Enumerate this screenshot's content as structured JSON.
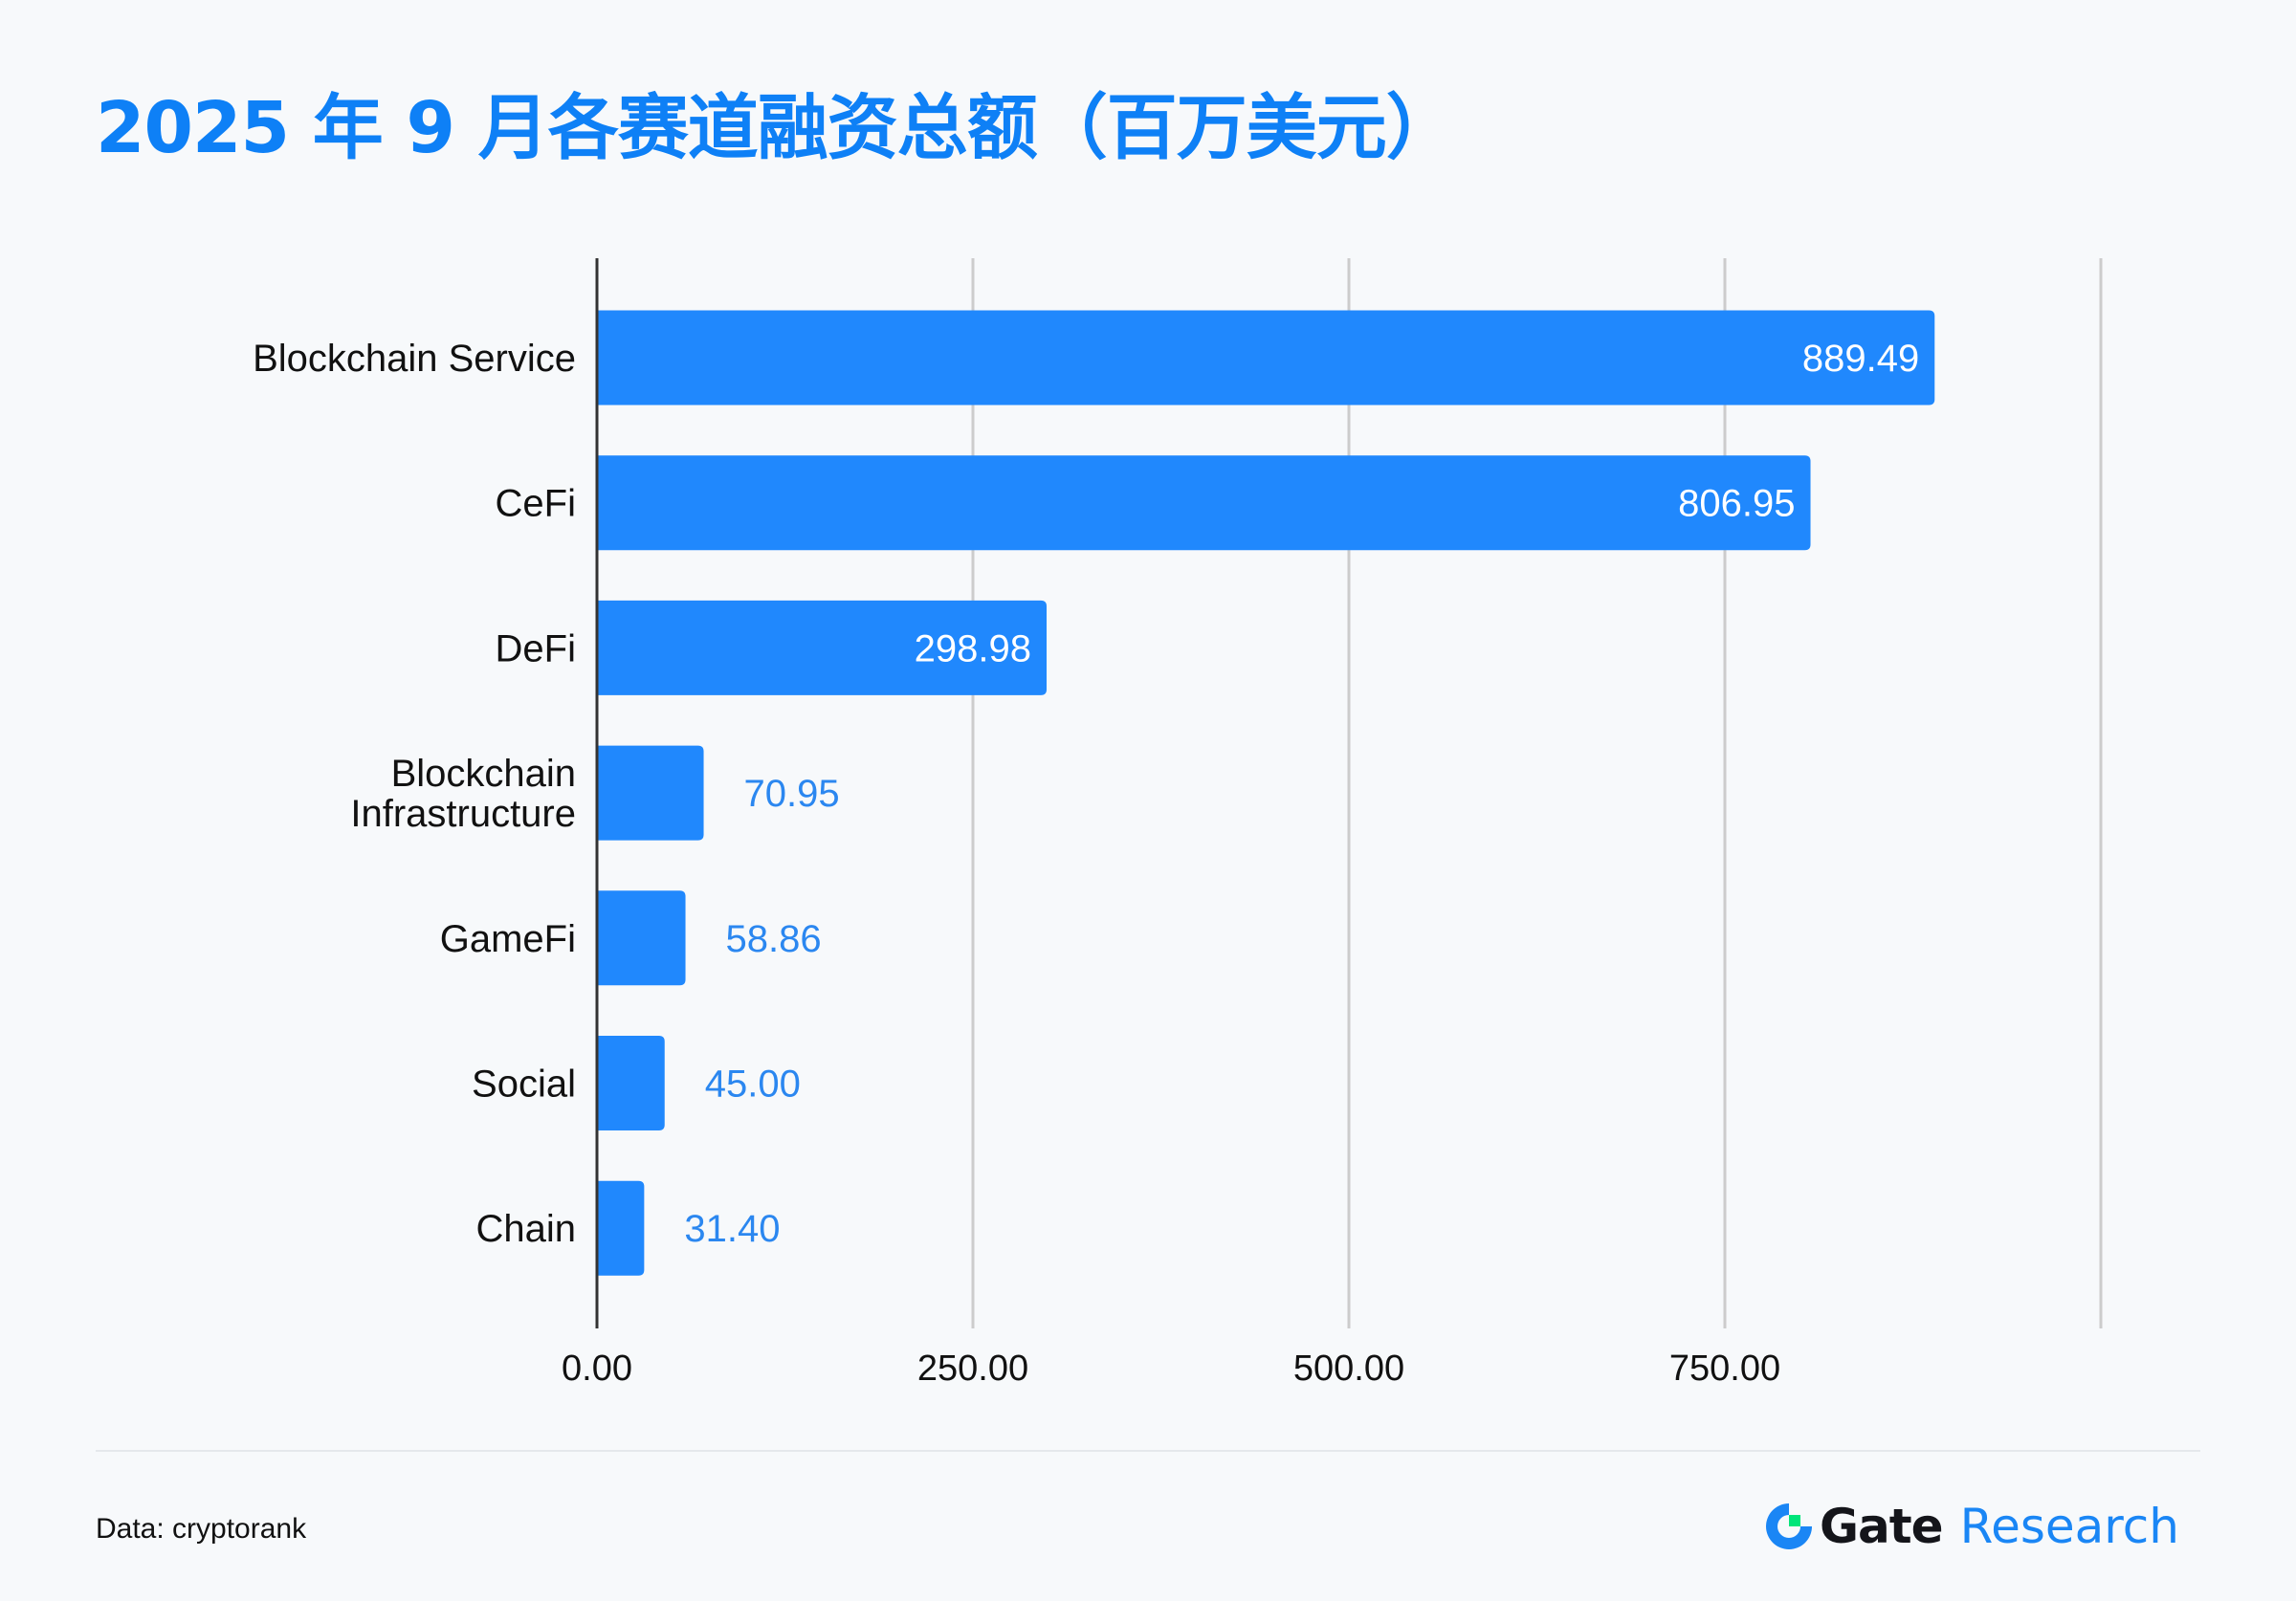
{
  "title": "2025 年 9 月各赛道融资总额（百万美元）",
  "footer": {
    "source": "Data: cryptorank",
    "logo_brand": "Gate",
    "logo_sub": "Research",
    "logo_icon": "gate-logo-icon"
  },
  "colors": {
    "title": "#0e80f6",
    "bar": "#2088fd",
    "label_inside": "#ffffff",
    "label_outside": "#2b87f0",
    "axis": "#333333",
    "grid": "#cccccc",
    "logo_green": "#00e57a",
    "logo_blue": "#1a86f5"
  },
  "chart_data": {
    "type": "bar",
    "orientation": "horizontal",
    "title": "2025 年 9 月各赛道融资总额（百万美元）",
    "xlabel": "",
    "ylabel": "",
    "categories": [
      "Blockchain Service",
      "CeFi",
      "DeFi",
      "Blockchain Infrastructure",
      "GameFi",
      "Social",
      "Chain"
    ],
    "values": [
      889.49,
      806.95,
      298.98,
      70.95,
      58.86,
      45.0,
      31.4
    ],
    "value_labels": [
      "889.49",
      "806.95",
      "298.98",
      "70.95",
      "58.86",
      "45.00",
      "31.40"
    ],
    "xlim": [
      0,
      1000
    ],
    "xticks": [
      0,
      250,
      500,
      750,
      1000
    ],
    "xtick_labels": [
      "0.00",
      "250.00",
      "500.00",
      "750.00",
      ""
    ],
    "grid": true,
    "legend": "none",
    "unit": "百万美元"
  }
}
